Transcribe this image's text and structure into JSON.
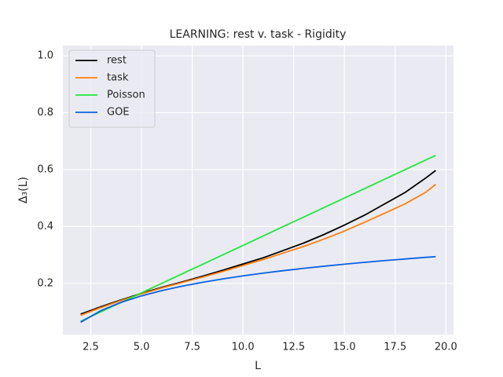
{
  "chart_data": {
    "type": "line",
    "title": "LEARNING: rest v. task - Rigidity",
    "x_label": "L",
    "y_label": "Δ₃(L)",
    "x": [
      2,
      3,
      4,
      5,
      6,
      7,
      8,
      9,
      10,
      11,
      12,
      13,
      14,
      15,
      16,
      17,
      18,
      19,
      19.5
    ],
    "series": [
      {
        "name": "rest",
        "color": "#000000",
        "values": [
          0.092,
          0.118,
          0.142,
          0.165,
          0.186,
          0.205,
          0.225,
          0.246,
          0.268,
          0.29,
          0.316,
          0.342,
          0.372,
          0.405,
          0.44,
          0.48,
          0.52,
          0.57,
          0.597
        ]
      },
      {
        "name": "task",
        "color": "#ff7f0e",
        "values": [
          0.088,
          0.115,
          0.14,
          0.163,
          0.184,
          0.203,
          0.222,
          0.242,
          0.263,
          0.284,
          0.307,
          0.33,
          0.356,
          0.384,
          0.415,
          0.447,
          0.48,
          0.52,
          0.548
        ]
      },
      {
        "name": "Poisson",
        "color": "#1ee83c",
        "values": [
          0.0667,
          0.1,
          0.1333,
          0.1667,
          0.2,
          0.2333,
          0.2667,
          0.3,
          0.3333,
          0.3667,
          0.4,
          0.4333,
          0.4667,
          0.5,
          0.5333,
          0.5667,
          0.6,
          0.6333,
          0.65
        ]
      },
      {
        "name": "GOE",
        "color": "#0b62e0",
        "values": [
          0.0633,
          0.1044,
          0.1335,
          0.1561,
          0.1746,
          0.1902,
          0.2037,
          0.2157,
          0.2264,
          0.236,
          0.2448,
          0.2529,
          0.2604,
          0.2674,
          0.274,
          0.2801,
          0.2859,
          0.2914,
          0.294
        ]
      }
    ],
    "xlim": [
      1.125,
      20.375
    ],
    "ylim": [
      0.02,
      1.036
    ],
    "xticks": [
      {
        "value": 2.5,
        "label": "2.5"
      },
      {
        "value": 5,
        "label": "5.0"
      },
      {
        "value": 7.5,
        "label": "7.5"
      },
      {
        "value": 10,
        "label": "10.0"
      },
      {
        "value": 12.5,
        "label": "12.5"
      },
      {
        "value": 15,
        "label": "15.0"
      },
      {
        "value": 17.5,
        "label": "17.5"
      },
      {
        "value": 20,
        "label": "20.0"
      }
    ],
    "yticks": [
      {
        "value": 0.2,
        "label": "0.2"
      },
      {
        "value": 0.4,
        "label": "0.4"
      },
      {
        "value": 0.6,
        "label": "0.6"
      },
      {
        "value": 0.8,
        "label": "0.8"
      },
      {
        "value": 1,
        "label": "1.0"
      }
    ],
    "grid": true,
    "legend": "upper left"
  }
}
